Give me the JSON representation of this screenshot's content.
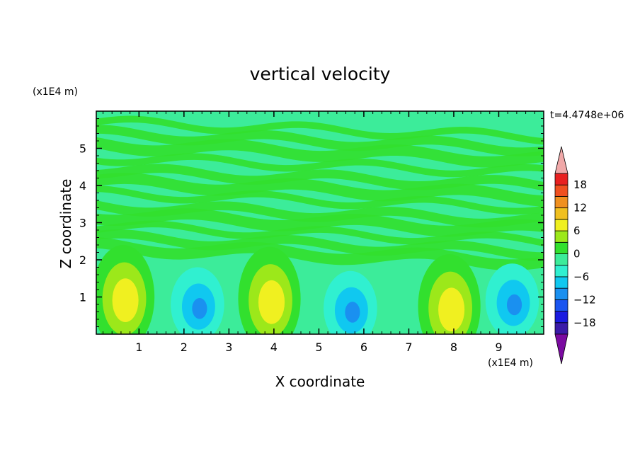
{
  "chart_data": {
    "type": "heatmap",
    "title": "vertical velocity",
    "xlabel": "X coordinate",
    "ylabel": "Z coordinate",
    "x_unit": "(x1E4 m)",
    "y_unit": "(x1E4 m)",
    "time_label": "t=4.4748e+06",
    "xlim": [
      0.05,
      10.0
    ],
    "ylim": [
      0.0,
      6.0
    ],
    "x_ticks": [
      "1",
      "2",
      "3",
      "4",
      "5",
      "6",
      "7",
      "8",
      "9"
    ],
    "y_ticks": [
      "1",
      "2",
      "3",
      "4",
      "5"
    ],
    "colorbar": {
      "ticks": [
        "18",
        "12",
        "6",
        "0",
        "−6",
        "−12",
        "−18"
      ],
      "levels": [
        -21,
        -18,
        -15,
        -12,
        -9,
        -6,
        -3,
        0,
        3,
        6,
        9,
        12,
        15,
        18,
        21
      ],
      "colors": [
        "#7a0aa0",
        "#3a1aa8",
        "#1a1ae0",
        "#1a55f0",
        "#1a90f0",
        "#10c8f0",
        "#30f0d0",
        "#3cec9a",
        "#32e02e",
        "#9ce81a",
        "#f0f020",
        "#f0c020",
        "#f09020",
        "#f05020",
        "#e82020",
        "#f0a8a8"
      ]
    },
    "background_level": "0 to 3",
    "cells": [
      {
        "x": 0.65,
        "z": 1.0,
        "w_max": 9,
        "sign": "positive"
      },
      {
        "x": 2.3,
        "z": 0.8,
        "w_min": -12,
        "sign": "negative"
      },
      {
        "x": 3.9,
        "z": 0.95,
        "w_max": 9,
        "sign": "positive"
      },
      {
        "x": 5.7,
        "z": 0.7,
        "w_min": -12,
        "sign": "negative"
      },
      {
        "x": 7.9,
        "z": 0.75,
        "w_max": 9,
        "sign": "positive"
      },
      {
        "x": 9.3,
        "z": 0.9,
        "w_min": -12,
        "sign": "negative"
      }
    ]
  }
}
